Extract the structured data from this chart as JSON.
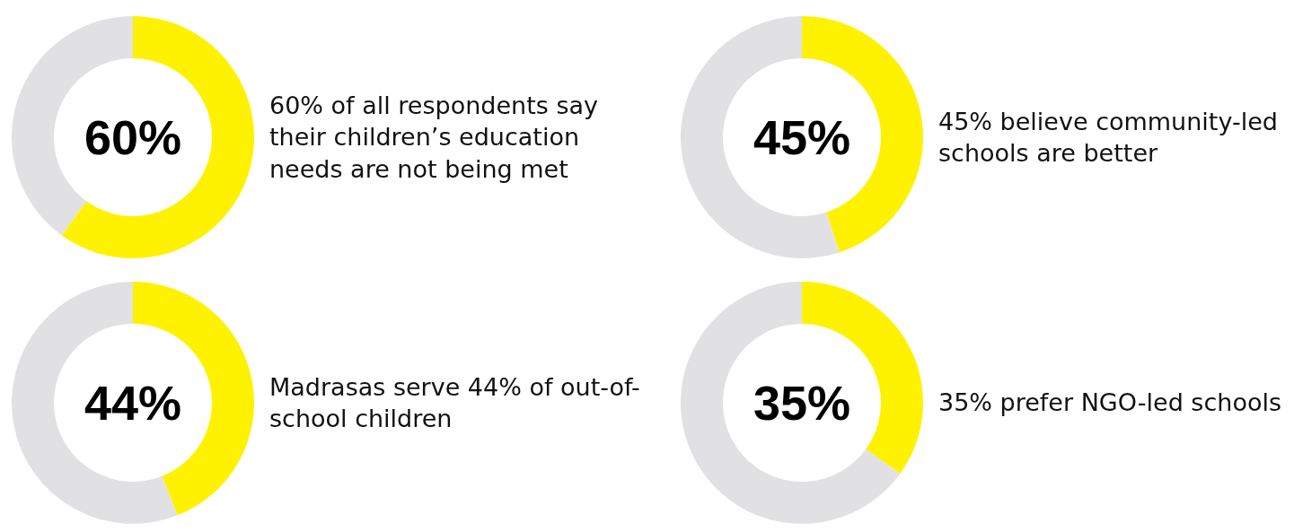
{
  "chart_data": [
    {
      "type": "donut",
      "categories": [
        null,
        null
      ],
      "values": [
        60,
        40
      ],
      "colors": [
        "#fff200",
        "#e1e1e3"
      ],
      "annotations": [
        "60%",
        "60% of all respondents say their children’s education needs are not being met"
      ]
    },
    {
      "type": "donut",
      "categories": [
        null,
        null
      ],
      "values": [
        45,
        55
      ],
      "colors": [
        "#fff200",
        "#e1e1e3"
      ],
      "annotations": [
        "45%",
        "45% believe community-led schools are better"
      ]
    },
    {
      "type": "donut",
      "categories": [
        null,
        null
      ],
      "values": [
        44,
        56
      ],
      "colors": [
        "#fff200",
        "#e1e1e3"
      ],
      "annotations": [
        "44%",
        "Madrasas serve 44% of out-of-school children"
      ]
    },
    {
      "type": "donut",
      "categories": [
        null,
        null
      ],
      "values": [
        35,
        65
      ],
      "colors": [
        "#fff200",
        "#e1e1e3"
      ],
      "annotations": [
        "35%",
        "35% prefer NGO-led schools"
      ]
    }
  ]
}
